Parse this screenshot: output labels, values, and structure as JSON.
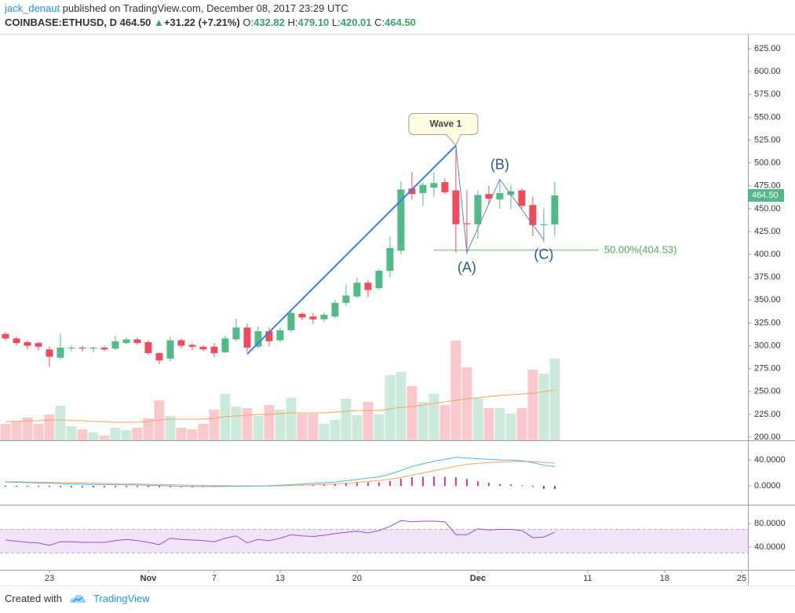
{
  "header": {
    "author": "jack_denaut",
    "published": "published on TradingView.com, December 08, 2017 23:29 UTC",
    "symbol": "COINBASE:ETHUSD, D",
    "last": "464.50",
    "change": "+31.22 (+7.21%)",
    "ohlc": [
      {
        "key": "O:",
        "value": "432.82"
      },
      {
        "key": "H:",
        "value": "479.10"
      },
      {
        "key": "L:",
        "value": "420.01"
      },
      {
        "key": "C:",
        "value": "464.50"
      }
    ]
  },
  "footer": {
    "created": "Created with",
    "brand": "TradingView"
  },
  "chart_data": {
    "type": "candlestick",
    "x": [
      "2017-10-19",
      "2017-10-20",
      "2017-10-21",
      "2017-10-22",
      "2017-10-23",
      "2017-10-24",
      "2017-10-25",
      "2017-10-26",
      "2017-10-27",
      "2017-10-28",
      "2017-10-29",
      "2017-10-30",
      "2017-10-31",
      "2017-11-01",
      "2017-11-02",
      "2017-11-03",
      "2017-11-04",
      "2017-11-05",
      "2017-11-06",
      "2017-11-07",
      "2017-11-08",
      "2017-11-09",
      "2017-11-10",
      "2017-11-11",
      "2017-11-12",
      "2017-11-13",
      "2017-11-14",
      "2017-11-15",
      "2017-11-16",
      "2017-11-17",
      "2017-11-18",
      "2017-11-19",
      "2017-11-20",
      "2017-11-21",
      "2017-11-22",
      "2017-11-23",
      "2017-11-24",
      "2017-11-25",
      "2017-11-26",
      "2017-11-27",
      "2017-11-28",
      "2017-11-29",
      "2017-11-30",
      "2017-12-01",
      "2017-12-02",
      "2017-12-03",
      "2017-12-04",
      "2017-12-05",
      "2017-12-06",
      "2017-12-07",
      "2017-12-08"
    ],
    "open": [
      313,
      308,
      304,
      303,
      296,
      287,
      297,
      298,
      297,
      298,
      297,
      303,
      307,
      304,
      292,
      286,
      306,
      301,
      299,
      299,
      293,
      307,
      320,
      299,
      316,
      306,
      317,
      335,
      332,
      329,
      332,
      347,
      354,
      369,
      363,
      382,
      404,
      472,
      467,
      473,
      479,
      470,
      434,
      433,
      466,
      460,
      465,
      470,
      454,
      432,
      432.82
    ],
    "high": [
      315,
      310,
      306,
      304,
      299,
      313,
      301,
      300,
      299,
      300,
      311,
      309,
      309,
      306,
      293,
      310,
      308,
      303,
      301,
      303,
      311,
      330,
      324,
      321,
      320,
      320,
      338,
      337,
      336,
      337,
      350,
      367,
      375,
      372,
      384,
      420,
      480,
      490,
      479,
      490,
      483,
      519,
      470,
      470,
      475,
      482,
      476,
      472,
      463,
      450,
      479.1
    ],
    "low": [
      306,
      300,
      296,
      295,
      277,
      285,
      294,
      294,
      293,
      294,
      295,
      302,
      301,
      290,
      280,
      283,
      297,
      295,
      294,
      288,
      292,
      305,
      293,
      297,
      299,
      304,
      315,
      328,
      324,
      326,
      330,
      344,
      352,
      353,
      361,
      375,
      400,
      460,
      453,
      463,
      466,
      402,
      400,
      417,
      455,
      450,
      450,
      450,
      420,
      413,
      420.01
    ],
    "close": [
      308,
      303,
      300,
      299,
      288,
      298,
      298,
      297,
      298,
      296,
      305,
      307,
      303,
      292,
      284,
      306,
      300,
      299,
      296,
      292,
      308,
      320,
      298,
      316,
      305,
      317,
      336,
      331,
      329,
      334,
      347,
      355,
      369,
      361,
      382,
      407,
      471,
      466,
      476,
      478,
      468,
      433,
      433,
      465,
      461,
      467,
      469,
      453,
      432,
      433,
      464.5
    ],
    "colors": {
      "up": "#53b987",
      "down": "#eb4d5c"
    },
    "xlim": [
      "2017-10-18T12:00:00Z",
      "2017-12-25T14:00:00Z"
    ],
    "xticks": [
      {
        "value": "2017-10-23",
        "label": "23"
      },
      {
        "value": "2017-11-01",
        "label": "Nov"
      },
      {
        "value": "2017-11-07",
        "label": "7"
      },
      {
        "value": "2017-11-13",
        "label": "13"
      },
      {
        "value": "2017-11-20",
        "label": "20"
      },
      {
        "value": "2017-12-01",
        "label": "Dec"
      },
      {
        "value": "2017-12-11",
        "label": "11"
      },
      {
        "value": "2017-12-18",
        "label": "18"
      },
      {
        "value": "2017-12-25",
        "label": "25"
      }
    ],
    "ylim": [
      196.6,
      640.5
    ],
    "yticks": [
      {
        "value": 200,
        "label": "200.00"
      },
      {
        "value": 225,
        "label": "225.00"
      },
      {
        "value": 250,
        "label": "250.00"
      },
      {
        "value": 275,
        "label": "275.00"
      },
      {
        "value": 300,
        "label": "300.00"
      },
      {
        "value": 325,
        "label": "325.00"
      },
      {
        "value": 350,
        "label": "350.00"
      },
      {
        "value": 375,
        "label": "375.00"
      },
      {
        "value": 400,
        "label": "400.00"
      },
      {
        "value": 425,
        "label": "425.00"
      },
      {
        "value": 450,
        "label": "450.00"
      },
      {
        "value": 475,
        "label": "475.00"
      },
      {
        "value": 500,
        "label": "500.00"
      },
      {
        "value": 525,
        "label": "525.00"
      },
      {
        "value": 550,
        "label": "550.00"
      },
      {
        "value": 575,
        "label": "575.00"
      },
      {
        "value": 600,
        "label": "600.00"
      },
      {
        "value": 625,
        "label": "625.00"
      }
    ],
    "last_price": {
      "value": 464.5,
      "label": "464.50"
    },
    "volume": {
      "ylim": [
        0,
        517
      ],
      "values": [
        21,
        24,
        29,
        21,
        33,
        44,
        18,
        14,
        10,
        6,
        16,
        13,
        16,
        28,
        51,
        31,
        16,
        14,
        21,
        39,
        59,
        43,
        41,
        31,
        45,
        39,
        54,
        34,
        34,
        21,
        26,
        53,
        32,
        49,
        33,
        83,
        87,
        69,
        49,
        59,
        45,
        127,
        93,
        53,
        41,
        41,
        34,
        41,
        90,
        85,
        104
      ],
      "ma": {
        "color": "#f7a35c",
        "values": [
          24,
          24,
          25,
          25,
          26,
          26,
          25,
          25,
          24,
          24,
          23,
          23,
          23,
          24,
          26,
          27,
          27,
          27,
          27,
          28,
          30,
          31,
          32,
          33,
          33,
          34,
          35,
          35,
          35,
          35,
          36,
          37,
          38,
          38,
          38,
          40,
          42,
          43,
          45,
          47,
          49,
          51,
          53,
          54,
          56,
          57,
          58,
          59,
          60,
          62,
          64
        ]
      }
    },
    "trendline": {
      "color": "#3d7fe0",
      "from": {
        "x": "2017-11-10",
        "y": 291
      },
      "to": {
        "x": "2017-11-29",
        "y": 519
      }
    },
    "wave": {
      "color": "#5b87c5",
      "label_color": "#2a5a8a",
      "points": [
        {
          "x": "2017-11-29",
          "y": 519,
          "label": "Wave 1"
        },
        {
          "x": "2017-11-30",
          "y": 402,
          "label": "(A)"
        },
        {
          "x": "2017-12-03",
          "y": 482,
          "label": "(B)"
        },
        {
          "x": "2017-12-07",
          "y": 416,
          "label": "(C)"
        }
      ]
    },
    "fib": {
      "label": "50.00%(404.53)",
      "value": 404.53,
      "from": "2017-11-27",
      "to": "2017-12-12",
      "color": "#4caf50"
    },
    "macd": {
      "ylim": [
        -29,
        68
      ],
      "yticks": [
        {
          "value": 40,
          "label": "40.0000"
        },
        {
          "value": 0,
          "label": "0.0000"
        }
      ],
      "macd": {
        "color": "#4fb3e8",
        "values": [
          6,
          5.5,
          5,
          4.5,
          4,
          3.5,
          3,
          2.5,
          2,
          2,
          1.8,
          1.6,
          1.4,
          1,
          0.5,
          0,
          -0.5,
          -1,
          -1,
          -1,
          -0.8,
          -0.5,
          -0.2,
          0,
          0.3,
          1,
          2,
          3,
          4,
          5,
          6,
          8,
          10,
          12,
          14,
          18,
          24,
          30,
          34,
          38,
          41,
          44,
          43,
          42,
          41,
          40,
          40,
          39,
          36,
          32,
          30
        ]
      },
      "signal": {
        "color": "#f7a35c",
        "values": [
          6.5,
          6.3,
          6,
          5.8,
          5.5,
          5.2,
          5,
          4.6,
          4.2,
          3.9,
          3.6,
          3.3,
          3,
          2.6,
          2.2,
          1.8,
          1.4,
          1,
          0.7,
          0.4,
          0.2,
          0,
          -0.1,
          -0.1,
          0,
          0.2,
          0.6,
          1.1,
          1.7,
          2.4,
          3.2,
          4.2,
          5.4,
          6.8,
          8.3,
          10.3,
          13,
          16.4,
          19.9,
          23.5,
          27,
          30.5,
          33.2,
          35,
          36.2,
          37,
          37.6,
          37.9,
          37.5,
          36.4,
          35
        ]
      },
      "histogram": {
        "colors": {
          "up": "#e0338c",
          "down": "#3f51b5"
        },
        "values": [
          -0.5,
          -0.8,
          -1,
          -1.3,
          -1.5,
          -1.7,
          -2,
          -2.1,
          -2.2,
          -1.9,
          -1.8,
          -1.7,
          -1.6,
          -1.6,
          -1.7,
          -1.8,
          -1.9,
          -2,
          -1.7,
          -1.4,
          -1,
          -0.5,
          -0.1,
          0.1,
          0.3,
          0.8,
          1.4,
          1.9,
          2.3,
          2.6,
          2.8,
          3.8,
          4.6,
          5.2,
          5.7,
          7.7,
          11,
          13.6,
          14.1,
          14.5,
          14,
          13.5,
          10.8,
          7,
          4.8,
          3,
          2.4,
          1.1,
          -1.5,
          -4.4,
          -5
        ]
      }
    },
    "rsi": {
      "ylim": [
        1.3,
        109.3
      ],
      "yticks": [
        {
          "value": 80,
          "label": "80.0000"
        },
        {
          "value": 40,
          "label": "40.0000"
        }
      ],
      "band": [
        30,
        70
      ],
      "band_color": "#e9d8f7",
      "color": "#a24bd6",
      "values": [
        52,
        50,
        48,
        47,
        43,
        49,
        49,
        48,
        48,
        48,
        51,
        53,
        51,
        48,
        44,
        55,
        53,
        52,
        51,
        49,
        55,
        59,
        47,
        53,
        51,
        55,
        61,
        59,
        58,
        60,
        63,
        65,
        67,
        64,
        68,
        75,
        85,
        83,
        84,
        84,
        83,
        61,
        61,
        71,
        69,
        70,
        70,
        68,
        56,
        57,
        65
      ]
    }
  }
}
